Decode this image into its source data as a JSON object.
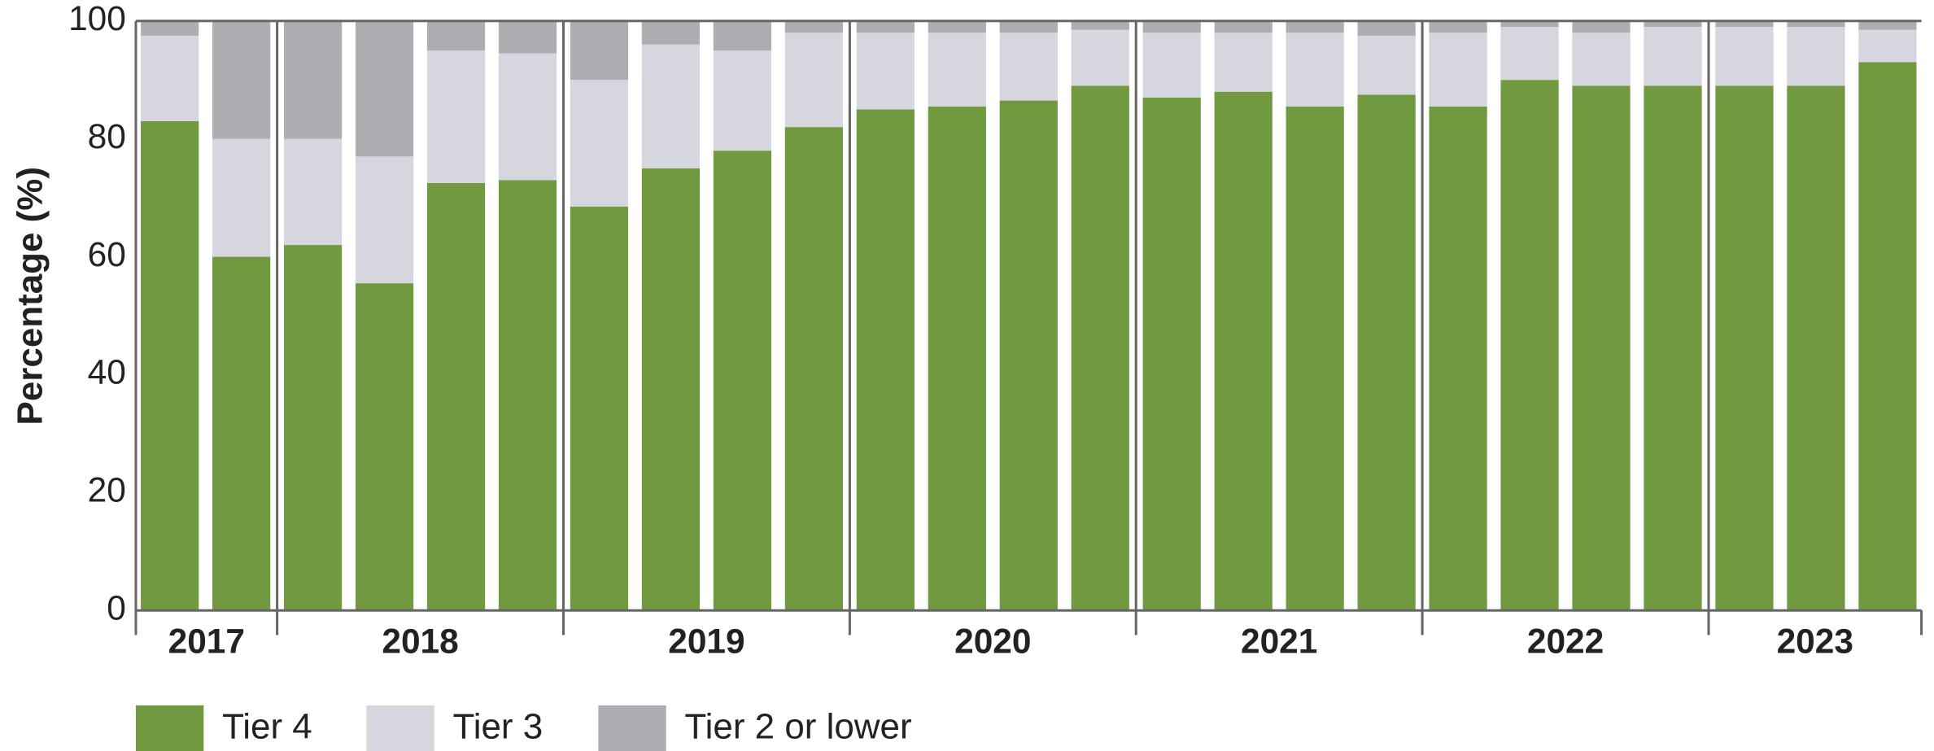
{
  "chart_data": {
    "type": "stacked_bar",
    "y_label": "Percentage (%)",
    "ylim": [
      0,
      100
    ],
    "yticks": [
      0,
      20,
      40,
      60,
      80,
      100
    ],
    "groups": [
      {
        "label": "2017",
        "bars": 2
      },
      {
        "label": "2018",
        "bars": 4
      },
      {
        "label": "2019",
        "bars": 4
      },
      {
        "label": "2020",
        "bars": 4
      },
      {
        "label": "2021",
        "bars": 4
      },
      {
        "label": "2022",
        "bars": 4
      },
      {
        "label": "2023",
        "bars": 3
      }
    ],
    "series": [
      {
        "name": "Tier 4",
        "color": "#71993f",
        "values": [
          83,
          60,
          62,
          55.5,
          72.5,
          73,
          68.5,
          75,
          78,
          82,
          85,
          85.5,
          86.5,
          89,
          87,
          88,
          85.5,
          87.5,
          85.5,
          90,
          89,
          89,
          89,
          89,
          93
        ]
      },
      {
        "name": "Tier 3",
        "color": "#d6d6de",
        "values": [
          14.5,
          20,
          18,
          21.5,
          22.5,
          21.5,
          21.5,
          21,
          17,
          16,
          13,
          12.5,
          11.5,
          9.5,
          11,
          10,
          12.5,
          10,
          12.5,
          9,
          9,
          10,
          10,
          10,
          5.5
        ]
      },
      {
        "name": "Tier 2 or lower",
        "color": "#adadb2",
        "values": [
          2.5,
          20,
          20,
          23,
          5,
          5.5,
          10,
          4,
          5,
          2,
          2,
          2,
          2,
          1.5,
          2,
          2,
          2,
          2.5,
          2,
          1,
          2,
          1,
          1,
          1,
          1.5
        ]
      }
    ]
  }
}
